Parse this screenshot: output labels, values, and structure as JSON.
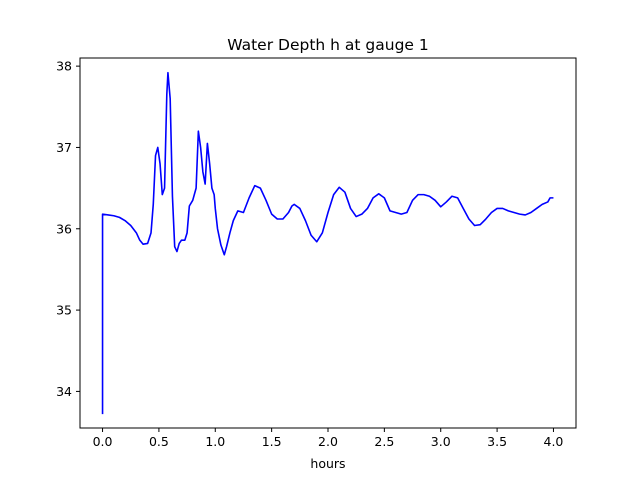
{
  "chart_data": {
    "type": "line",
    "title": "Water Depth h at gauge 1",
    "xlabel": "hours",
    "ylabel": "",
    "xlim": [
      -0.2,
      4.2
    ],
    "ylim": [
      33.55,
      38.1
    ],
    "xticks": [
      0.0,
      0.5,
      1.0,
      1.5,
      2.0,
      2.5,
      3.0,
      3.5,
      4.0
    ],
    "xtick_labels": [
      "0.0",
      "0.5",
      "1.0",
      "1.5",
      "2.0",
      "2.5",
      "3.0",
      "3.5",
      "4.0"
    ],
    "yticks": [
      34,
      35,
      36,
      37,
      38
    ],
    "ytick_labels": [
      "34",
      "35",
      "36",
      "37",
      "38"
    ],
    "grid": false,
    "series": [
      {
        "color": "#0000ff",
        "points": [
          [
            0.0,
            33.72
          ],
          [
            0.0,
            36.18
          ],
          [
            0.05,
            36.17
          ],
          [
            0.1,
            36.16
          ],
          [
            0.15,
            36.14
          ],
          [
            0.2,
            36.1
          ],
          [
            0.25,
            36.04
          ],
          [
            0.3,
            35.95
          ],
          [
            0.33,
            35.86
          ],
          [
            0.36,
            35.81
          ],
          [
            0.4,
            35.82
          ],
          [
            0.43,
            35.95
          ],
          [
            0.45,
            36.3
          ],
          [
            0.47,
            36.9
          ],
          [
            0.49,
            37.0
          ],
          [
            0.51,
            36.8
          ],
          [
            0.53,
            36.42
          ],
          [
            0.55,
            36.5
          ],
          [
            0.57,
            37.65
          ],
          [
            0.58,
            37.92
          ],
          [
            0.6,
            37.6
          ],
          [
            0.62,
            36.4
          ],
          [
            0.64,
            35.78
          ],
          [
            0.66,
            35.72
          ],
          [
            0.68,
            35.82
          ],
          [
            0.7,
            35.86
          ],
          [
            0.73,
            35.86
          ],
          [
            0.75,
            35.95
          ],
          [
            0.77,
            36.28
          ],
          [
            0.8,
            36.35
          ],
          [
            0.83,
            36.5
          ],
          [
            0.85,
            37.2
          ],
          [
            0.87,
            37.0
          ],
          [
            0.89,
            36.7
          ],
          [
            0.91,
            36.55
          ],
          [
            0.93,
            37.05
          ],
          [
            0.95,
            36.8
          ],
          [
            0.97,
            36.5
          ],
          [
            0.99,
            36.42
          ],
          [
            1.0,
            36.25
          ],
          [
            1.02,
            36.0
          ],
          [
            1.05,
            35.8
          ],
          [
            1.08,
            35.68
          ],
          [
            1.1,
            35.78
          ],
          [
            1.13,
            35.95
          ],
          [
            1.16,
            36.1
          ],
          [
            1.2,
            36.22
          ],
          [
            1.25,
            36.2
          ],
          [
            1.3,
            36.38
          ],
          [
            1.35,
            36.53
          ],
          [
            1.4,
            36.5
          ],
          [
            1.45,
            36.35
          ],
          [
            1.5,
            36.18
          ],
          [
            1.55,
            36.12
          ],
          [
            1.6,
            36.12
          ],
          [
            1.65,
            36.2
          ],
          [
            1.68,
            36.28
          ],
          [
            1.7,
            36.3
          ],
          [
            1.75,
            36.25
          ],
          [
            1.8,
            36.1
          ],
          [
            1.85,
            35.92
          ],
          [
            1.9,
            35.84
          ],
          [
            1.95,
            35.95
          ],
          [
            2.0,
            36.2
          ],
          [
            2.05,
            36.42
          ],
          [
            2.1,
            36.51
          ],
          [
            2.15,
            36.45
          ],
          [
            2.2,
            36.25
          ],
          [
            2.25,
            36.15
          ],
          [
            2.3,
            36.18
          ],
          [
            2.35,
            36.25
          ],
          [
            2.4,
            36.38
          ],
          [
            2.45,
            36.43
          ],
          [
            2.5,
            36.38
          ],
          [
            2.55,
            36.22
          ],
          [
            2.6,
            36.2
          ],
          [
            2.65,
            36.18
          ],
          [
            2.7,
            36.2
          ],
          [
            2.75,
            36.35
          ],
          [
            2.8,
            36.42
          ],
          [
            2.85,
            36.42
          ],
          [
            2.9,
            36.4
          ],
          [
            2.95,
            36.35
          ],
          [
            3.0,
            36.27
          ],
          [
            3.05,
            36.33
          ],
          [
            3.1,
            36.4
          ],
          [
            3.15,
            36.38
          ],
          [
            3.2,
            36.25
          ],
          [
            3.25,
            36.12
          ],
          [
            3.3,
            36.04
          ],
          [
            3.35,
            36.05
          ],
          [
            3.4,
            36.12
          ],
          [
            3.45,
            36.2
          ],
          [
            3.5,
            36.25
          ],
          [
            3.55,
            36.25
          ],
          [
            3.6,
            36.22
          ],
          [
            3.65,
            36.2
          ],
          [
            3.7,
            36.18
          ],
          [
            3.75,
            36.17
          ],
          [
            3.8,
            36.2
          ],
          [
            3.85,
            36.25
          ],
          [
            3.9,
            36.3
          ],
          [
            3.95,
            36.33
          ],
          [
            3.97,
            36.38
          ],
          [
            4.0,
            36.38
          ]
        ]
      }
    ]
  }
}
